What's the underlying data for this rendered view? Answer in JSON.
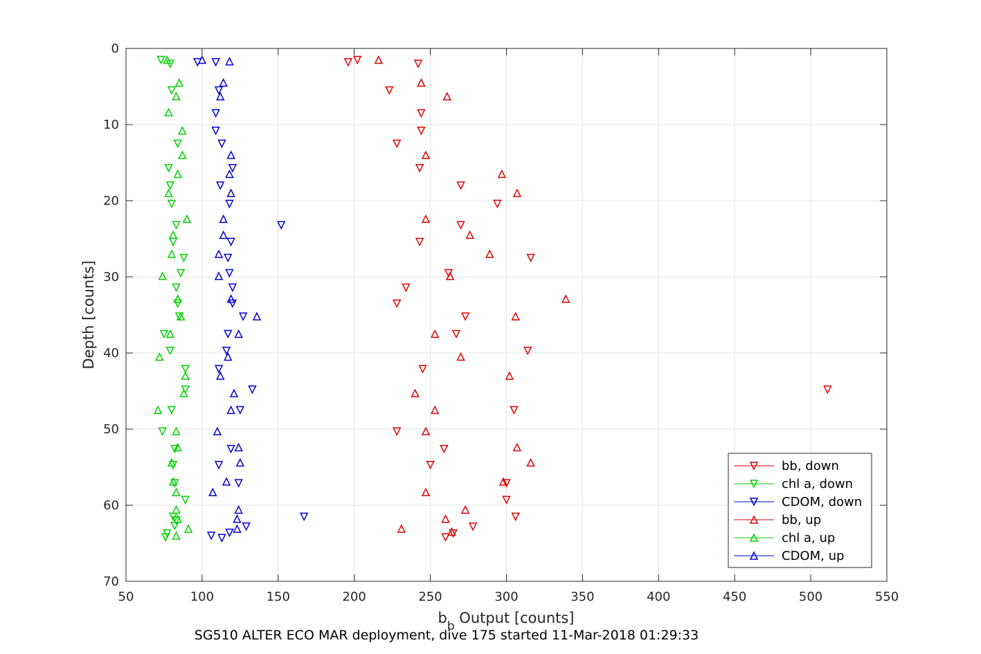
{
  "chart_data": {
    "type": "scatter",
    "caption": "SG510 ALTER ECO MAR deployment, dive 175 started 11-Mar-2018 01:29:33",
    "xlabel_main": "b",
    "xlabel_sub": "b",
    "xlabel_rest": " Output [counts]",
    "ylabel": "Depth [counts]",
    "xlim": [
      50,
      550
    ],
    "ylim": [
      0,
      70
    ],
    "y_reversed": true,
    "grid": true,
    "legend_position": "bottom-right",
    "x_ticks": [
      50,
      100,
      150,
      200,
      250,
      300,
      350,
      400,
      450,
      500,
      550
    ],
    "y_ticks": [
      0,
      10,
      20,
      30,
      40,
      50,
      60,
      70
    ],
    "x_tick_labels": [
      "50",
      "100",
      "150",
      "200",
      "250",
      "300",
      "350",
      "400",
      "450",
      "500",
      "550"
    ],
    "y_tick_labels": [
      "0",
      "10",
      "20",
      "30",
      "40",
      "50",
      "60",
      "70"
    ],
    "series": [
      {
        "name": "bb, down",
        "color": "#e00000",
        "marker": "triangle-down",
        "points": [
          [
            202,
            1.5
          ],
          [
            196,
            1.8
          ],
          [
            242,
            2.0
          ],
          [
            223,
            5.5
          ],
          [
            244,
            8.5
          ],
          [
            244,
            10.8
          ],
          [
            228,
            12.5
          ],
          [
            243,
            15.7
          ],
          [
            270,
            18.0
          ],
          [
            294,
            20.4
          ],
          [
            270,
            23.2
          ],
          [
            243,
            25.4
          ],
          [
            316,
            27.5
          ],
          [
            262,
            29.5
          ],
          [
            234,
            31.4
          ],
          [
            228,
            33.5
          ],
          [
            273,
            35.2
          ],
          [
            267,
            37.5
          ],
          [
            314,
            39.7
          ],
          [
            245,
            42.1
          ],
          [
            511,
            44.8
          ],
          [
            305,
            47.5
          ],
          [
            228,
            50.3
          ],
          [
            259,
            52.6
          ],
          [
            250,
            54.7
          ],
          [
            300,
            57.1
          ],
          [
            300,
            59.3
          ],
          [
            306,
            61.5
          ],
          [
            260,
            64.2
          ],
          [
            265,
            63.7
          ],
          [
            278,
            62.8
          ]
        ]
      },
      {
        "name": "chl a, down",
        "color": "#00d000",
        "marker": "triangle-down",
        "points": [
          [
            73,
            1.5
          ],
          [
            79,
            2.0
          ],
          [
            80,
            5.5
          ],
          [
            84,
            12.5
          ],
          [
            78,
            15.7
          ],
          [
            79,
            18.0
          ],
          [
            80,
            20.4
          ],
          [
            83,
            23.2
          ],
          [
            81,
            25.4
          ],
          [
            88,
            27.5
          ],
          [
            86,
            29.5
          ],
          [
            83,
            31.4
          ],
          [
            84,
            33.5
          ],
          [
            85,
            35.2
          ],
          [
            75,
            37.5
          ],
          [
            79,
            39.7
          ],
          [
            89,
            42.1
          ],
          [
            89,
            44.8
          ],
          [
            80,
            47.5
          ],
          [
            74,
            50.3
          ],
          [
            82,
            52.6
          ],
          [
            81,
            54.7
          ],
          [
            82,
            57.1
          ],
          [
            89,
            59.3
          ],
          [
            81,
            61.5
          ],
          [
            83,
            62.0
          ],
          [
            82,
            62.7
          ],
          [
            77,
            63.7
          ],
          [
            76,
            64.2
          ]
        ]
      },
      {
        "name": "CDOM, down",
        "color": "#0000d0",
        "marker": "triangle-down",
        "points": [
          [
            97,
            1.8
          ],
          [
            109,
            1.8
          ],
          [
            111,
            5.5
          ],
          [
            109,
            8.5
          ],
          [
            109,
            10.8
          ],
          [
            113,
            12.5
          ],
          [
            120,
            15.7
          ],
          [
            112,
            18.0
          ],
          [
            118,
            20.4
          ],
          [
            152,
            23.2
          ],
          [
            119,
            25.4
          ],
          [
            117,
            27.5
          ],
          [
            118,
            29.5
          ],
          [
            120,
            31.4
          ],
          [
            120,
            33.5
          ],
          [
            127,
            35.2
          ],
          [
            117,
            37.5
          ],
          [
            116,
            39.7
          ],
          [
            111,
            42.1
          ],
          [
            133,
            44.8
          ],
          [
            125,
            47.5
          ],
          [
            119,
            52.6
          ],
          [
            111,
            54.7
          ],
          [
            124,
            57.1
          ],
          [
            167,
            61.5
          ],
          [
            129,
            62.8
          ],
          [
            118,
            63.6
          ],
          [
            106,
            64.0
          ],
          [
            113,
            64.3
          ]
        ]
      },
      {
        "name": "bb, up",
        "color": "#e00000",
        "marker": "triangle-up",
        "points": [
          [
            216,
            1.5
          ],
          [
            244,
            4.5
          ],
          [
            261,
            6.3
          ],
          [
            247,
            14.0
          ],
          [
            297,
            16.5
          ],
          [
            307,
            19.0
          ],
          [
            247,
            22.4
          ],
          [
            276,
            24.5
          ],
          [
            289,
            27.0
          ],
          [
            263,
            29.9
          ],
          [
            339,
            32.9
          ],
          [
            306,
            35.2
          ],
          [
            253,
            37.5
          ],
          [
            270,
            40.5
          ],
          [
            302,
            43.0
          ],
          [
            240,
            45.3
          ],
          [
            253,
            47.5
          ],
          [
            247,
            50.3
          ],
          [
            307,
            52.4
          ],
          [
            316,
            54.4
          ],
          [
            298,
            56.9
          ],
          [
            247,
            58.3
          ],
          [
            273,
            60.6
          ],
          [
            260,
            61.8
          ],
          [
            231,
            63.1
          ],
          [
            264,
            63.5
          ]
        ]
      },
      {
        "name": "chl a, up",
        "color": "#00d000",
        "marker": "triangle-up",
        "points": [
          [
            77,
            1.5
          ],
          [
            85,
            4.5
          ],
          [
            83,
            6.3
          ],
          [
            78,
            8.4
          ],
          [
            87,
            10.8
          ],
          [
            87,
            14.0
          ],
          [
            84,
            16.5
          ],
          [
            78,
            19.0
          ],
          [
            90,
            22.4
          ],
          [
            81,
            24.5
          ],
          [
            80,
            27.0
          ],
          [
            74,
            29.9
          ],
          [
            84,
            32.9
          ],
          [
            86,
            35.2
          ],
          [
            79,
            37.5
          ],
          [
            72,
            40.5
          ],
          [
            89,
            43.0
          ],
          [
            88,
            45.3
          ],
          [
            71,
            47.5
          ],
          [
            83,
            50.3
          ],
          [
            84,
            52.4
          ],
          [
            80,
            54.4
          ],
          [
            81,
            56.9
          ],
          [
            83,
            58.3
          ],
          [
            83,
            60.6
          ],
          [
            84,
            61.8
          ],
          [
            91,
            63.1
          ],
          [
            83,
            64.0
          ]
        ]
      },
      {
        "name": "CDOM, up",
        "color": "#0000d0",
        "marker": "triangle-up",
        "points": [
          [
            100,
            1.5
          ],
          [
            118,
            1.7
          ],
          [
            114,
            4.5
          ],
          [
            112,
            6.3
          ],
          [
            119,
            14.0
          ],
          [
            118,
            16.5
          ],
          [
            119,
            19.0
          ],
          [
            114,
            22.4
          ],
          [
            114,
            24.5
          ],
          [
            111,
            27.0
          ],
          [
            111,
            29.9
          ],
          [
            119,
            32.9
          ],
          [
            136,
            35.2
          ],
          [
            124,
            37.5
          ],
          [
            117,
            40.5
          ],
          [
            112,
            43.0
          ],
          [
            121,
            45.3
          ],
          [
            119,
            47.5
          ],
          [
            110,
            50.3
          ],
          [
            124,
            52.4
          ],
          [
            125,
            54.4
          ],
          [
            116,
            56.9
          ],
          [
            107,
            58.3
          ],
          [
            124,
            60.6
          ],
          [
            123,
            61.8
          ],
          [
            123,
            63.1
          ]
        ]
      }
    ]
  }
}
